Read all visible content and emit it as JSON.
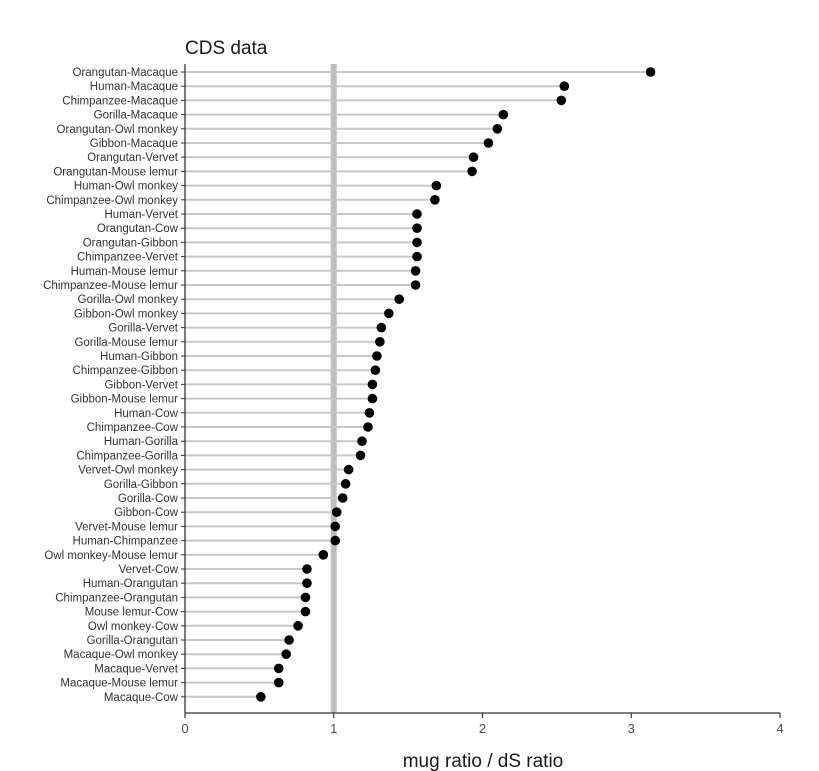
{
  "chart_data": {
    "type": "scatter",
    "style": "lollipop",
    "title": "CDS data",
    "xlabel": "mug ratio / dS ratio",
    "ylabel": "",
    "xlim": [
      0,
      4
    ],
    "xticks": [
      0,
      1,
      2,
      3,
      4
    ],
    "reference_line_x": 1,
    "grid": false,
    "colors": {
      "point": "#000000",
      "stem": "#c8c8c8",
      "reference_line": "#bebebe",
      "axis": "#333333"
    },
    "categories": [
      "Orangutan-Macaque",
      "Human-Macaque",
      "Chimpanzee-Macaque",
      "Gorilla-Macaque",
      "Orangutan-Owl monkey",
      "Gibbon-Macaque",
      "Orangutan-Vervet",
      "Orangutan-Mouse lemur",
      "Human-Owl monkey",
      "Chimpanzee-Owl monkey",
      "Human-Vervet",
      "Orangutan-Cow",
      "Orangutan-Gibbon",
      "Chimpanzee-Vervet",
      "Human-Mouse lemur",
      "Chimpanzee-Mouse lemur",
      "Gorilla-Owl monkey",
      "Gibbon-Owl monkey",
      "Gorilla-Vervet",
      "Gorilla-Mouse lemur",
      "Human-Gibbon",
      "Chimpanzee-Gibbon",
      "Gibbon-Vervet",
      "Gibbon-Mouse lemur",
      "Human-Cow",
      "Chimpanzee-Cow",
      "Human-Gorilla",
      "Chimpanzee-Gorilla",
      "Vervet-Owl monkey",
      "Gorilla-Gibbon",
      "Gorilla-Cow",
      "Gibbon-Cow",
      "Vervet-Mouse lemur",
      "Human-Chimpanzee",
      "Owl monkey-Mouse lemur",
      "Vervet-Cow",
      "Human-Orangutan",
      "Chimpanzee-Orangutan",
      "Mouse lemur-Cow",
      "Owl monkey-Cow",
      "Gorilla-Orangutan",
      "Macaque-Owl monkey",
      "Macaque-Vervet",
      "Macaque-Mouse lemur",
      "Macaque-Cow"
    ],
    "values": [
      3.13,
      2.55,
      2.53,
      2.14,
      2.1,
      2.04,
      1.94,
      1.93,
      1.69,
      1.68,
      1.56,
      1.56,
      1.56,
      1.56,
      1.55,
      1.55,
      1.44,
      1.37,
      1.32,
      1.31,
      1.29,
      1.28,
      1.26,
      1.26,
      1.24,
      1.23,
      1.19,
      1.18,
      1.1,
      1.08,
      1.06,
      1.02,
      1.01,
      1.01,
      0.93,
      0.82,
      0.82,
      0.81,
      0.81,
      0.76,
      0.7,
      0.68,
      0.63,
      0.63,
      0.51
    ]
  }
}
